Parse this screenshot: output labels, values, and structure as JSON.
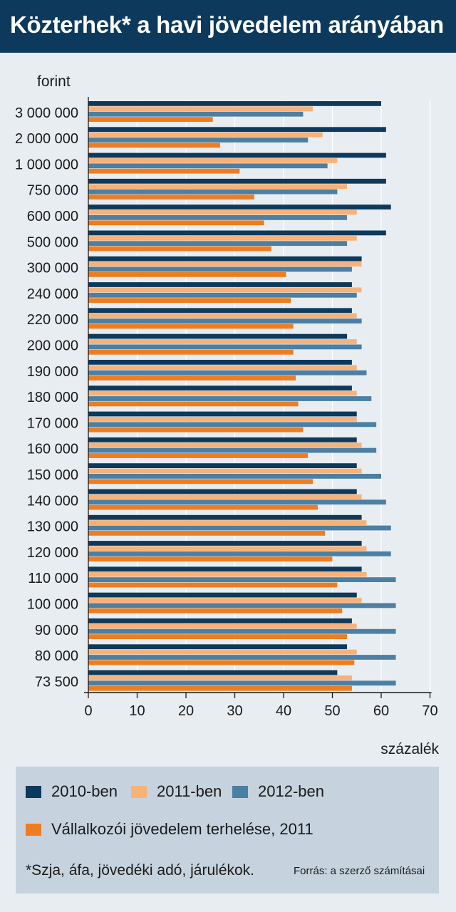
{
  "title": "Közterhek* a havi jövedelem arányában",
  "footnote": "*Szja, áfa, jövedéki adó, járulékok.",
  "source": "Forrás: a szerző számításai",
  "colors": {
    "title_bg": "#0d3a5c",
    "background": "#e8edf2",
    "legend_bg": "#c6d3df",
    "s2010": "#0d3a5c",
    "s2011": "#f7b27a",
    "s2012": "#4b7fa3",
    "vallalkozoi": "#ee7d22"
  },
  "chart_data": {
    "type": "bar",
    "orientation": "horizontal",
    "ylabel": "forint",
    "xlabel": "százalék",
    "xlim": [
      0,
      70
    ],
    "xticks": [
      "0",
      "10",
      "20",
      "30",
      "40",
      "50",
      "60",
      "70"
    ],
    "grid": true,
    "categories": [
      "3 000 000",
      "2 000 000",
      "1 000 000",
      "750 000",
      "600 000",
      "500 000",
      "300 000",
      "240 000",
      "220 000",
      "200 000",
      "190 000",
      "180 000",
      "170 000",
      "160 000",
      "150 000",
      "140 000",
      "130 000",
      "120 000",
      "110 000",
      "100 000",
      "90 000",
      "80 000",
      "73 500"
    ],
    "series": [
      {
        "name": "2010-ben",
        "color": "#0d3a5c",
        "values": [
          60,
          61,
          61,
          61,
          62,
          61,
          56,
          54,
          54,
          53,
          54,
          54,
          55,
          55,
          55,
          55,
          56,
          56,
          56,
          55,
          54,
          53,
          51
        ]
      },
      {
        "name": "2011-ben",
        "color": "#f7b27a",
        "values": [
          46,
          48,
          51,
          53,
          55,
          55,
          56,
          56,
          55,
          55,
          55,
          55,
          55,
          56,
          56,
          56,
          57,
          57,
          57,
          56,
          55,
          55,
          54
        ]
      },
      {
        "name": "2012-ben",
        "color": "#4b7fa3",
        "values": [
          44,
          45,
          49,
          51,
          53,
          53,
          54,
          55,
          56,
          56,
          57,
          58,
          59,
          59,
          60,
          61,
          62,
          62,
          63,
          63,
          63,
          63,
          63
        ]
      },
      {
        "name": "Vállalkozói jövedelem terhelése, 2011",
        "color": "#ee7d22",
        "values": [
          25.5,
          27,
          31,
          34,
          36,
          37.5,
          40.5,
          41.5,
          42,
          42,
          42.5,
          43,
          44,
          45,
          46,
          47,
          48.5,
          50,
          51,
          52,
          53,
          54.5,
          54
        ]
      }
    ]
  }
}
